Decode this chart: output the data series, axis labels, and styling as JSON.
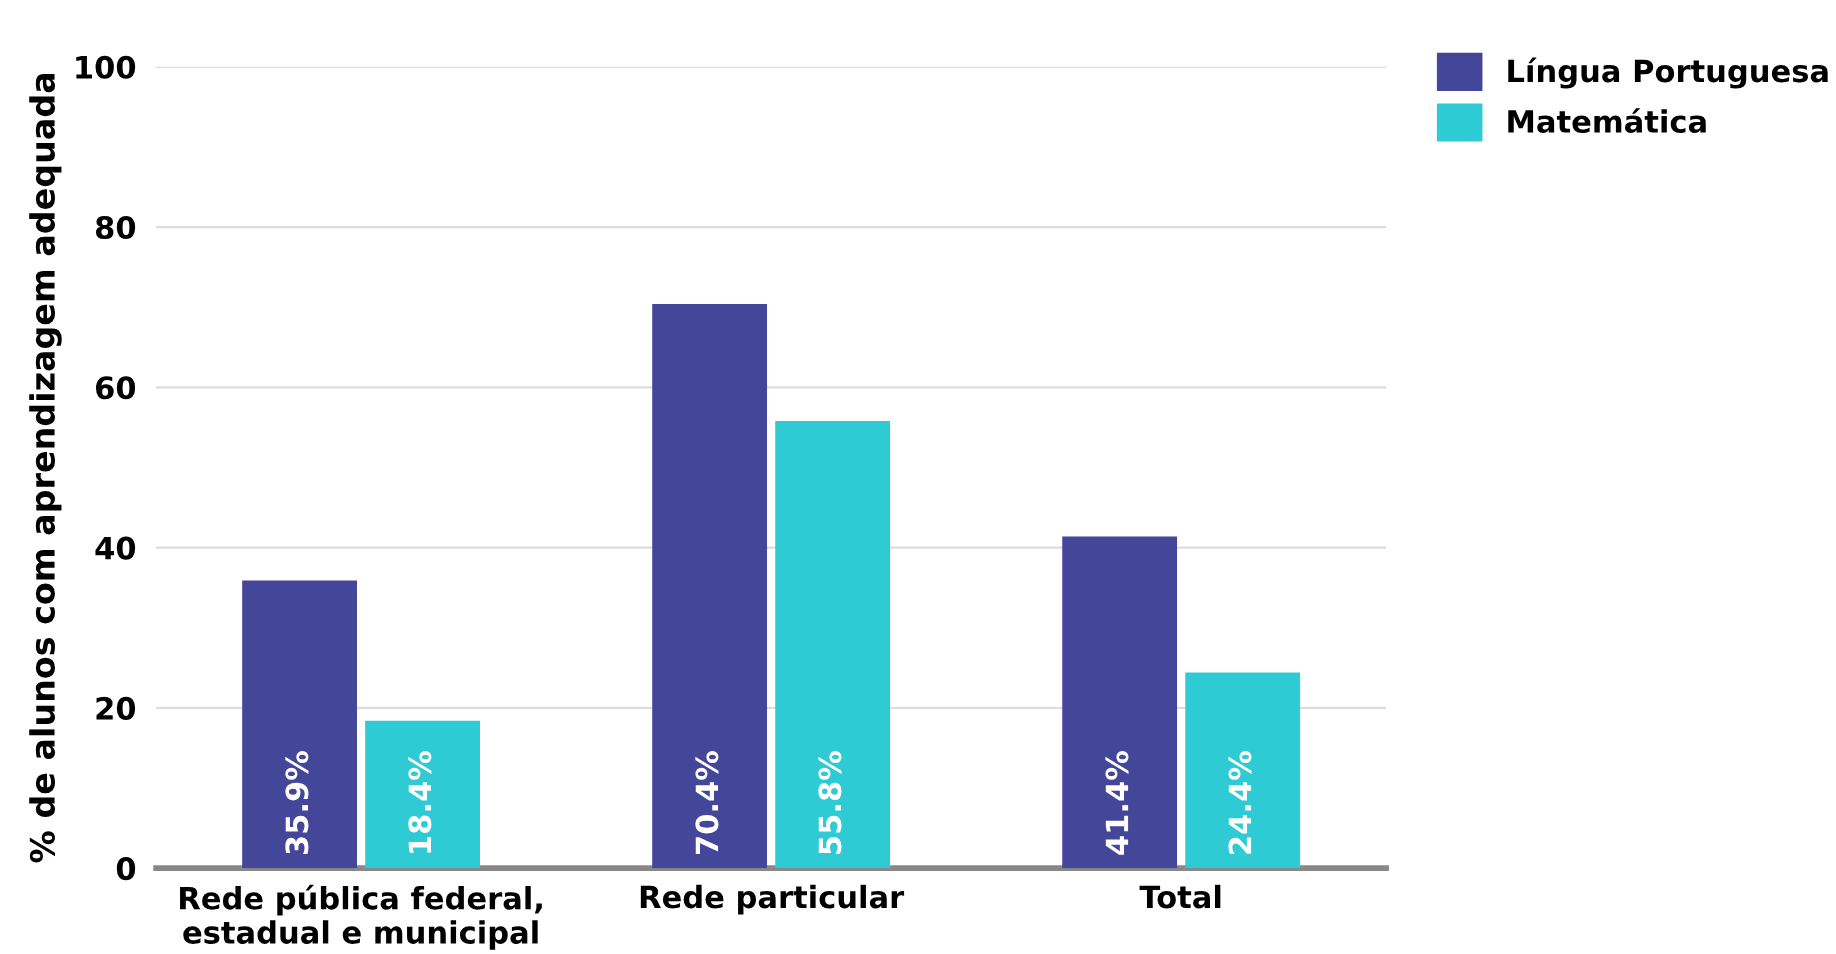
{
  "chart_data": {
    "type": "bar",
    "ylabel": "% de alunos com aprendizagem adequada",
    "categories": [
      "Rede pública federal,\nestadual e municipal",
      "Rede particular",
      "Total"
    ],
    "series": [
      {
        "name": "Língua Portuguesa",
        "color": "#434699",
        "values": [
          35.9,
          70.4,
          41.4
        ],
        "value_labels": [
          "35.9%",
          "70.4%",
          "41.4%"
        ]
      },
      {
        "name": "Matemática",
        "color": "#2ecbd4",
        "values": [
          18.4,
          55.8,
          24.4
        ],
        "value_labels": [
          "18.4%",
          "55.8%",
          "24.4%"
        ]
      }
    ],
    "ylim": [
      0,
      100
    ],
    "yticks": [
      0,
      20,
      40,
      60,
      80,
      100
    ],
    "grid": "y",
    "legend": "top right"
  }
}
